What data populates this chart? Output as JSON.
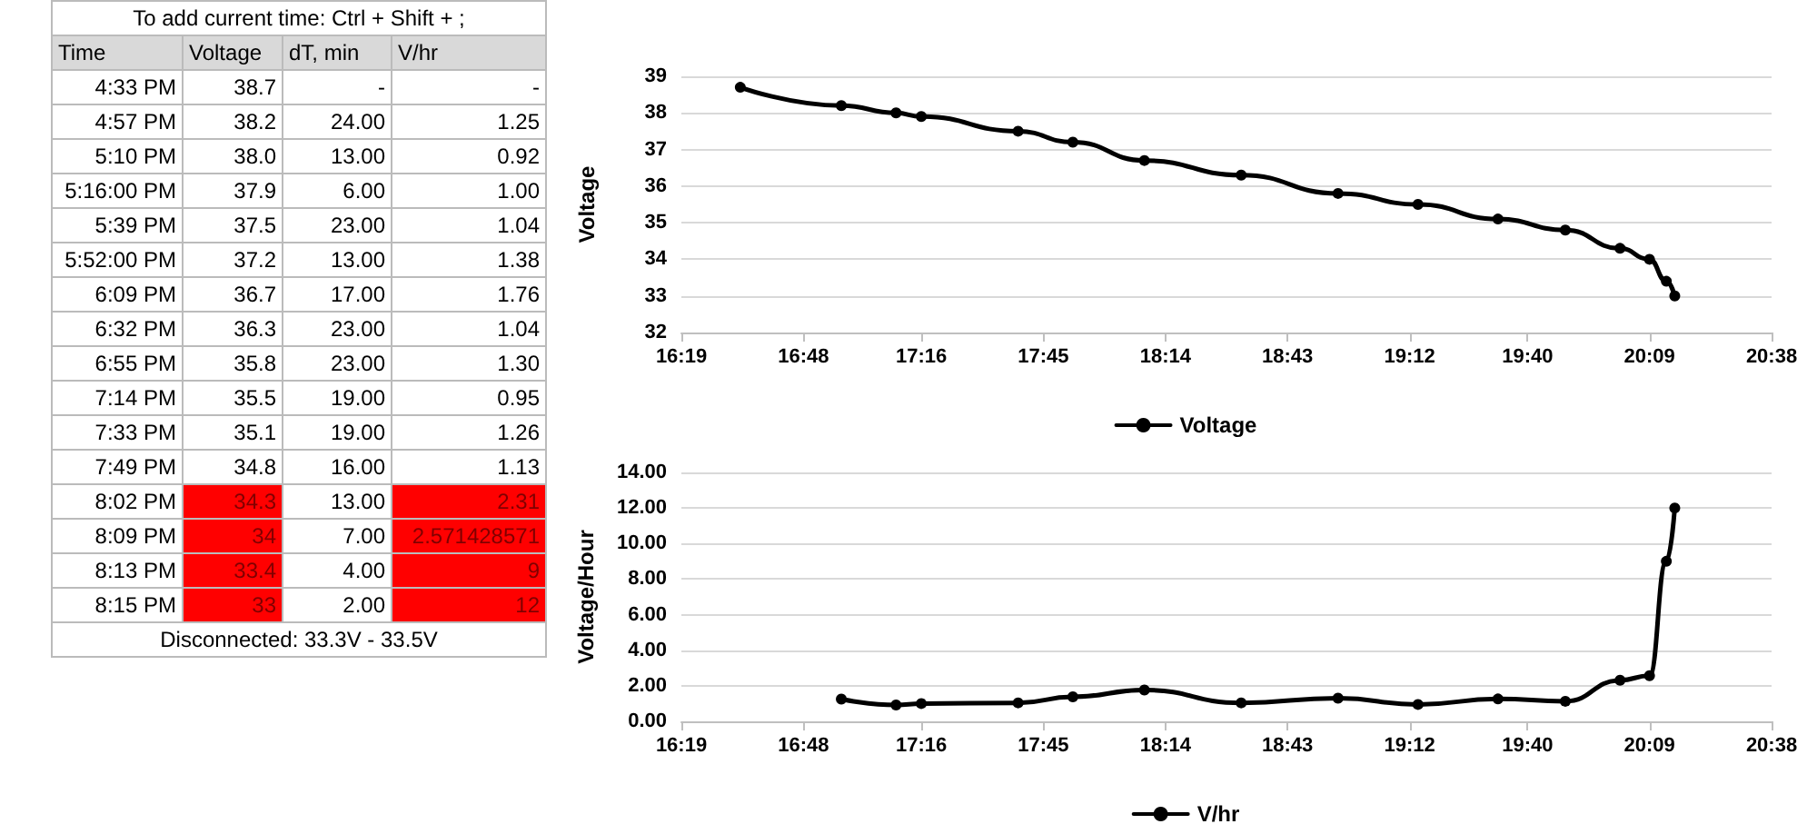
{
  "chart_data": [
    {
      "type": "other",
      "title": "To add current time:  Ctrl + Shift + ;",
      "xlabel": "Time",
      "categories": [
        "4:33 PM",
        "4:57 PM",
        "5:10 PM",
        "5:16:00 PM",
        "5:39 PM",
        "5:52:00 PM",
        "6:09 PM",
        "6:32 PM",
        "6:55 PM",
        "7:14 PM",
        "7:33 PM",
        "7:49 PM",
        "8:02 PM",
        "8:09 PM",
        "8:13 PM",
        "8:15 PM"
      ],
      "series": [
        {
          "name": "Voltage",
          "values": [
            38.7,
            38.2,
            38.0,
            37.9,
            37.5,
            37.2,
            36.7,
            36.3,
            35.8,
            35.5,
            35.1,
            34.8,
            34.3,
            34,
            33.4,
            33
          ],
          "value_labels": [
            "38.7",
            "38.2",
            "38.0",
            "37.9",
            "37.5",
            "37.2",
            "36.7",
            "36.3",
            "35.8",
            "35.5",
            "35.1",
            "34.8",
            "34.3",
            "34",
            "33.4",
            "33"
          ],
          "colors": [
            "#ffffff",
            "#ffffff",
            "#ffffff",
            "#ffffff",
            "#ffffff",
            "#ffffff",
            "#ffffff",
            "#ffffff",
            "#ffffff",
            "#ffffff",
            "#ffffff",
            "#ffffff",
            "#ff0000",
            "#ff0000",
            "#ff0000",
            "#ff0000"
          ]
        },
        {
          "name": "dT, min",
          "values": [
            null,
            24,
            13,
            6,
            23,
            13,
            17,
            23,
            23,
            19,
            19,
            16,
            13,
            7,
            4,
            2
          ],
          "value_labels": [
            "-",
            "24.00",
            "13.00",
            "6.00",
            "23.00",
            "13.00",
            "17.00",
            "23.00",
            "23.00",
            "19.00",
            "19.00",
            "16.00",
            "13.00",
            "7.00",
            "4.00",
            "2.00"
          ],
          "colors": [
            "#ffffff",
            "#ffffff",
            "#ffffff",
            "#ffffff",
            "#ffffff",
            "#ffffff",
            "#ffffff",
            "#ffffff",
            "#ffffff",
            "#ffffff",
            "#ffffff",
            "#ffffff",
            "#ffffff",
            "#ffffff",
            "#ffffff",
            "#ffffff"
          ]
        },
        {
          "name": "V/hr",
          "values": [
            null,
            1.25,
            0.92,
            1.0,
            1.04,
            1.38,
            1.76,
            1.04,
            1.3,
            0.95,
            1.26,
            1.13,
            2.31,
            2.571428571,
            9,
            12
          ],
          "value_labels": [
            "-",
            "1.25",
            "0.92",
            "1.00",
            "1.04",
            "1.38",
            "1.76",
            "1.04",
            "1.30",
            "0.95",
            "1.26",
            "1.13",
            "2.31",
            "2.571428571",
            "9",
            "12"
          ],
          "colors": [
            "#ffffff",
            "#ffffff",
            "#ffffff",
            "#ffffff",
            "#ffffff",
            "#ffffff",
            "#ffffff",
            "#ffffff",
            "#ffffff",
            "#ffffff",
            "#ffffff",
            "#ffffff",
            "#ff0000",
            "#ff0000",
            "#ff0000",
            "#ff0000"
          ]
        }
      ],
      "annotations": [
        "Disconnected: 33.3V - 33.5V"
      ],
      "legend": "top",
      "data_labels": true
    },
    {
      "type": "line",
      "ylabel": "Voltage",
      "x": [
        16.55,
        16.95,
        17.1667,
        17.2667,
        17.65,
        17.8667,
        18.15,
        18.5333,
        18.9167,
        19.2333,
        19.55,
        19.8167,
        20.0333,
        20.15,
        20.2167,
        20.25
      ],
      "series": [
        {
          "name": "Voltage",
          "color": "#000000",
          "values": [
            38.7,
            38.2,
            38.0,
            37.9,
            37.5,
            37.2,
            36.7,
            36.3,
            35.8,
            35.5,
            35.1,
            34.8,
            34.3,
            34,
            33.4,
            33
          ]
        }
      ],
      "xlim": [
        16.3167,
        20.6333
      ],
      "xticks": [
        {
          "value": 16.3167,
          "label": "16:19"
        },
        {
          "value": 16.8,
          "label": "16:48"
        },
        {
          "value": 17.2667,
          "label": "17:16"
        },
        {
          "value": 17.75,
          "label": "17:45"
        },
        {
          "value": 18.2333,
          "label": "18:14"
        },
        {
          "value": 18.7167,
          "label": "18:43"
        },
        {
          "value": 19.2,
          "label": "19:12"
        },
        {
          "value": 19.6667,
          "label": "19:40"
        },
        {
          "value": 20.15,
          "label": "20:09"
        },
        {
          "value": 20.6333,
          "label": "20:38"
        }
      ],
      "ylim": [
        32,
        39
      ],
      "yticks": [
        32,
        33,
        34,
        35,
        36,
        37,
        38,
        39
      ],
      "grid": "y",
      "legend": "bottom",
      "marker": "circle",
      "line_style": "solid"
    },
    {
      "type": "line",
      "ylabel": "Voltage/Hour",
      "x": [
        16.95,
        17.1667,
        17.2667,
        17.65,
        17.8667,
        18.15,
        18.5333,
        18.9167,
        19.2333,
        19.55,
        19.8167,
        20.0333,
        20.15,
        20.2167,
        20.25
      ],
      "series": [
        {
          "name": "V/hr",
          "color": "#000000",
          "values": [
            1.25,
            0.92,
            1.0,
            1.04,
            1.38,
            1.76,
            1.04,
            1.3,
            0.95,
            1.26,
            1.13,
            2.31,
            2.57,
            9,
            12
          ]
        }
      ],
      "xlim": [
        16.3167,
        20.6333
      ],
      "xticks": [
        {
          "value": 16.3167,
          "label": "16:19"
        },
        {
          "value": 16.8,
          "label": "16:48"
        },
        {
          "value": 17.2667,
          "label": "17:16"
        },
        {
          "value": 17.75,
          "label": "17:45"
        },
        {
          "value": 18.2333,
          "label": "18:14"
        },
        {
          "value": 18.7167,
          "label": "18:43"
        },
        {
          "value": 19.2,
          "label": "19:12"
        },
        {
          "value": 19.6667,
          "label": "19:40"
        },
        {
          "value": 20.15,
          "label": "20:09"
        },
        {
          "value": 20.6333,
          "label": "20:38"
        }
      ],
      "ylim": [
        0,
        14
      ],
      "yticks": [
        {
          "value": 0,
          "label": "0.00"
        },
        {
          "value": 2,
          "label": "2.00"
        },
        {
          "value": 4,
          "label": "4.00"
        },
        {
          "value": 6,
          "label": "6.00"
        },
        {
          "value": 8,
          "label": "8.00"
        },
        {
          "value": 10,
          "label": "10.00"
        },
        {
          "value": 12,
          "label": "12.00"
        },
        {
          "value": 14,
          "label": "14.00"
        }
      ],
      "grid": "y",
      "legend": "bottom",
      "marker": "circle",
      "line_style": "solid"
    }
  ]
}
